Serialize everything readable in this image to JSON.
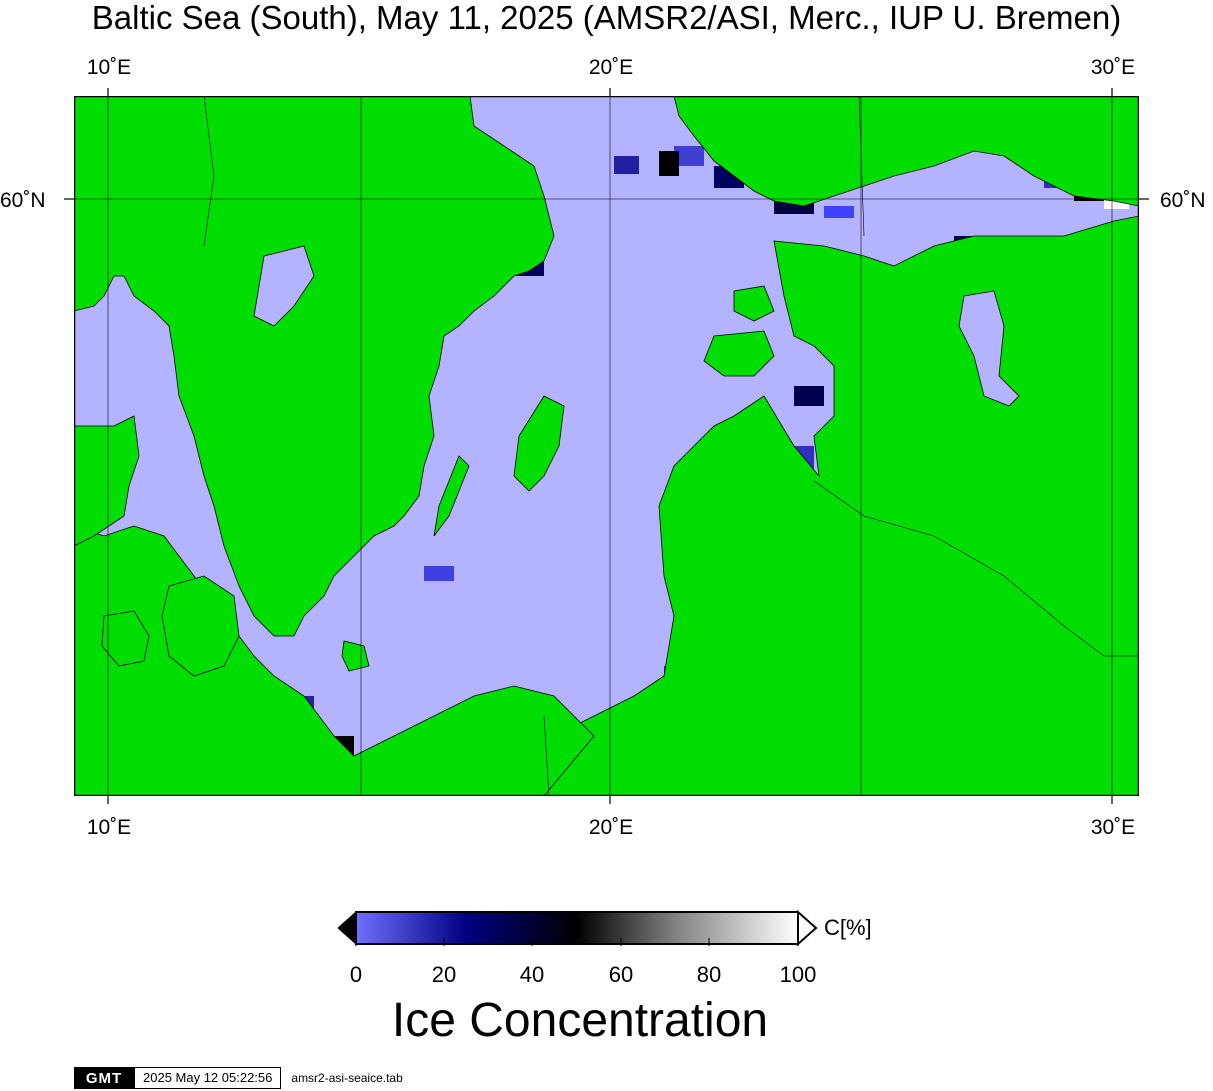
{
  "title": "Baltic Sea (South), May 11, 2025 (AMSR2/ASI, Merc., IUP U. Bremen)",
  "axes": {
    "lon_labels_top": [
      "10˚E",
      "20˚E",
      "30˚E"
    ],
    "lon_labels_bottom": [
      "10˚E",
      "20˚E",
      "30˚E"
    ],
    "lat_label_left": "60˚N",
    "lat_label_right": "60˚N",
    "lon_range": [
      9.3,
      30.5
    ],
    "gridlines": true
  },
  "colors": {
    "land": "#00dd00",
    "open_water": "#b3b3ff",
    "frame": "#000000"
  },
  "colorbar": {
    "ticks": [
      "0",
      "20",
      "40",
      "60",
      "80",
      "100"
    ],
    "unit": "C[%]",
    "title": "Ice Concentration",
    "stops": [
      "#7070ff",
      "#000080",
      "#000000",
      "#808080",
      "#ffffff"
    ]
  },
  "footer": {
    "logo": "GMT",
    "timestamp": "2025 May 12 05:22:56",
    "filename": "amsr2-asi-seaice.tab"
  }
}
